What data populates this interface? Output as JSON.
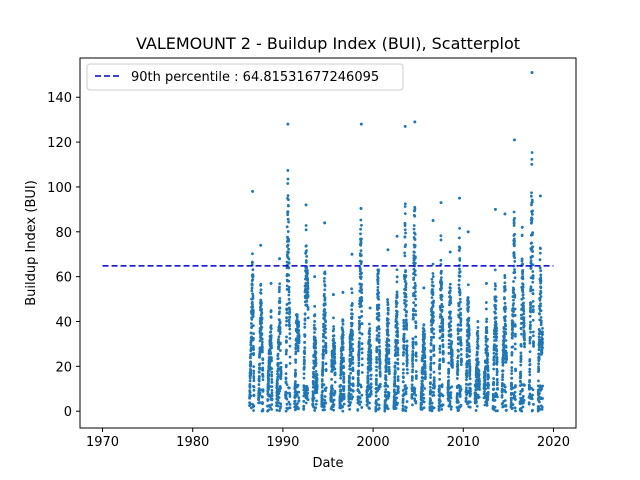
{
  "chart_data": {
    "type": "scatter",
    "title": "VALEMOUNT 2 - Buildup Index (BUI), Scatterplot",
    "xlabel": "Date",
    "ylabel": "Buildup Index (BUI)",
    "xlim": [
      1967.5,
      2022.5
    ],
    "ylim": [
      -7.5,
      157.5
    ],
    "xticks": [
      1970,
      1980,
      1990,
      2000,
      2010,
      2020
    ],
    "yticks": [
      0,
      20,
      40,
      60,
      80,
      100,
      120,
      140
    ],
    "grid": false,
    "legend_position": "top-left",
    "percentile_line": {
      "label": "90th percentile : 64.81531677246095",
      "value": 64.81531677246095,
      "x_range": [
        1970,
        2020
      ],
      "color": "#0000cd"
    },
    "marker_color": "#1f77b4",
    "seasons": [
      {
        "year": 1986,
        "peak": 98
      },
      {
        "year": 1987,
        "peak": 74
      },
      {
        "year": 1988,
        "peak": 57
      },
      {
        "year": 1989,
        "peak": 68
      },
      {
        "year": 1990,
        "peak": 128
      },
      {
        "year": 1991,
        "peak": 43
      },
      {
        "year": 1992,
        "peak": 92
      },
      {
        "year": 1993,
        "peak": 60
      },
      {
        "year": 1994,
        "peak": 84
      },
      {
        "year": 1995,
        "peak": 52
      },
      {
        "year": 1996,
        "peak": 53
      },
      {
        "year": 1997,
        "peak": 70
      },
      {
        "year": 1998,
        "peak": 128
      },
      {
        "year": 1999,
        "peak": 46
      },
      {
        "year": 2000,
        "peak": 63
      },
      {
        "year": 2001,
        "peak": 72
      },
      {
        "year": 2002,
        "peak": 78
      },
      {
        "year": 2003,
        "peak": 127
      },
      {
        "year": 2004,
        "peak": 129
      },
      {
        "year": 2005,
        "peak": 55
      },
      {
        "year": 2006,
        "peak": 85
      },
      {
        "year": 2007,
        "peak": 93
      },
      {
        "year": 2008,
        "peak": 71
      },
      {
        "year": 2009,
        "peak": 95
      },
      {
        "year": 2010,
        "peak": 80
      },
      {
        "year": 2011,
        "peak": 40
      },
      {
        "year": 2012,
        "peak": 57
      },
      {
        "year": 2013,
        "peak": 90
      },
      {
        "year": 2014,
        "peak": 88
      },
      {
        "year": 2015,
        "peak": 121
      },
      {
        "year": 2016,
        "peak": 82
      },
      {
        "year": 2017,
        "peak": 151
      },
      {
        "year": 2018,
        "peak": 96
      }
    ]
  }
}
